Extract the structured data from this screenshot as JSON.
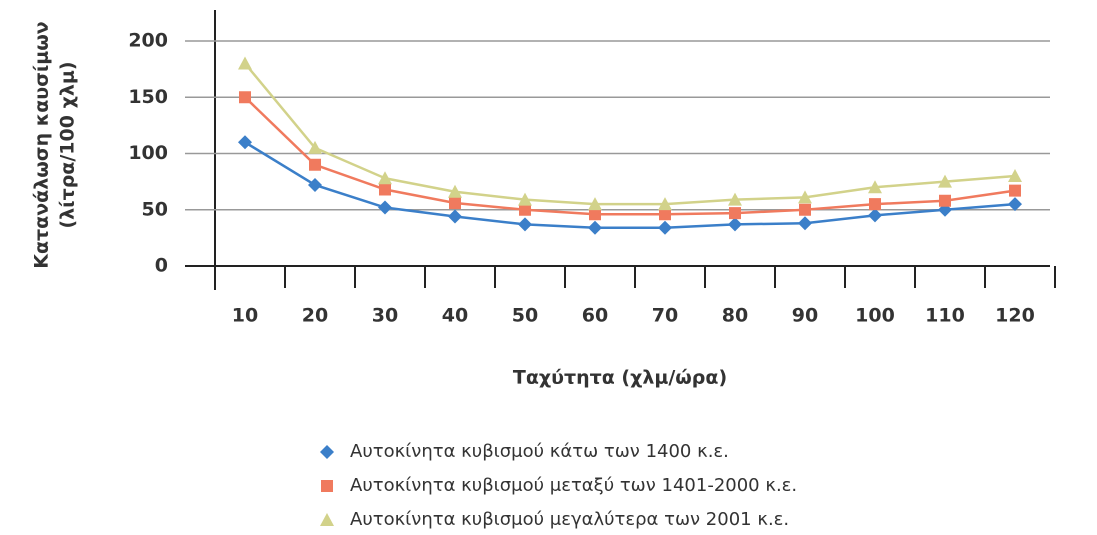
{
  "chart_data": {
    "type": "line",
    "ylabel": [
      "Κατανάλωση καυσίμων",
      "(λίτρα/100 χλμ)"
    ],
    "xlabel": "Ταχύτητα (χλμ/ώρα)",
    "categories": [
      "10",
      "20",
      "30",
      "40",
      "50",
      "60",
      "70",
      "80",
      "90",
      "100",
      "110",
      "120"
    ],
    "series": [
      {
        "name": "Αυτοκίνητα κυβισμού κάτω των 1400 κ.ε.",
        "color": "#3b7fc9",
        "marker": "diamond",
        "values": [
          110,
          72,
          52,
          44,
          37,
          34,
          34,
          37,
          38,
          45,
          50,
          55
        ]
      },
      {
        "name": "Αυτοκίνητα κυβισμού μεταξύ των 1401-2000 κ.ε.",
        "color": "#f07a5e",
        "marker": "square",
        "values": [
          150,
          90,
          68,
          56,
          50,
          46,
          46,
          47,
          50,
          55,
          58,
          67
        ]
      },
      {
        "name": "Αυτοκίνητα κυβισμού μεγαλύτερα των 2001 κ.ε.",
        "color": "#d2d28a",
        "marker": "triangle",
        "values": [
          180,
          105,
          78,
          66,
          59,
          55,
          55,
          59,
          61,
          70,
          75,
          80
        ]
      }
    ],
    "ylim": [
      0,
      200
    ],
    "yticks": [
      0,
      50,
      100,
      150,
      200
    ],
    "grid": true
  }
}
